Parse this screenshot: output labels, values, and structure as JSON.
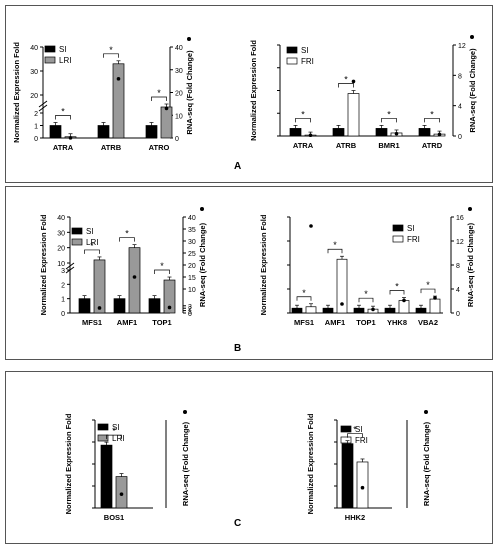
{
  "panels": [
    {
      "label": "A"
    },
    {
      "label": "B"
    },
    {
      "label": "C"
    }
  ],
  "colors": {
    "black": "#000000",
    "gray": "#999999",
    "white": "#ffffff"
  },
  "chart_data": [
    {
      "type": "bar",
      "panel": "A",
      "categories": [
        "ATRA",
        "ATRB",
        "ATRO"
      ],
      "ylabel": "Normalized Expression Fold",
      "y2label": "RNA-seq (Fold Change)",
      "axis_break": true,
      "y_ticks": [
        "0",
        "1",
        "2",
        "20",
        "30",
        "40"
      ],
      "y2_ticks": [
        "0",
        "10",
        "20",
        "30",
        "40"
      ],
      "series": [
        {
          "name": "SI",
          "color": "#000000",
          "values": [
            1.0,
            1.0,
            1.0
          ]
        },
        {
          "name": "LRI",
          "color": "#999999",
          "values": [
            0.1,
            33,
            15
          ]
        }
      ],
      "rnaseq": [
        0.08,
        26,
        13
      ],
      "significance": [
        "*",
        "*",
        "*"
      ]
    },
    {
      "type": "bar",
      "panel": "A",
      "categories": [
        "ATRA",
        "ATRB",
        "BMR1",
        "ATRD"
      ],
      "ylabel": "Normalized Expression Fold",
      "y2label": "RNA-seq (Fold Change)",
      "ylim": [
        0,
        12
      ],
      "y2_ticks": [
        "0",
        "4",
        "8",
        "12"
      ],
      "series": [
        {
          "name": "SI",
          "color": "#000000",
          "values": [
            1.0,
            1.0,
            1.0,
            1.0
          ]
        },
        {
          "name": "FRI",
          "color": "#ffffff",
          "values": [
            0.12,
            5.6,
            0.4,
            0.25
          ]
        }
      ],
      "rnaseq": [
        0.1,
        7.2,
        0.3,
        0.2
      ],
      "significance": [
        "*",
        "*",
        "*",
        "*"
      ]
    },
    {
      "type": "bar",
      "panel": "B",
      "categories": [
        "MFS1",
        "AMF1",
        "TOP1"
      ],
      "ylabel": "Normalized Expression Fold",
      "y2label": "RNA-seq (Fold Change)",
      "axis_break": true,
      "y_ticks": [
        "0",
        "1",
        "2",
        "3",
        "10",
        "20",
        "30",
        "40"
      ],
      "y2_ticks": [
        "0",
        "1",
        "2",
        "3",
        "10",
        "15",
        "20",
        "25",
        "30",
        "35",
        "40"
      ],
      "series": [
        {
          "name": "SI",
          "color": "#000000",
          "values": [
            1.0,
            1.0,
            1.0
          ]
        },
        {
          "name": "LRI",
          "color": "#999999",
          "values": [
            12,
            20,
            2.3
          ]
        }
      ],
      "rnaseq": [
        2.1,
        15,
        2.3
      ],
      "significance": [
        "*",
        "*",
        "*"
      ]
    },
    {
      "type": "bar",
      "panel": "B",
      "categories": [
        "MFS1",
        "AMF1",
        "TOP1",
        "YHK8",
        "VBA2"
      ],
      "ylabel": "Normalized Expression Fold",
      "y2label": "RNA-seq (Fold Change)",
      "ylim": [
        0,
        20
      ],
      "y2_ticks": [
        "0",
        "4",
        "8",
        "12",
        "16"
      ],
      "series": [
        {
          "name": "SI",
          "color": "#000000",
          "values": [
            1.0,
            1.0,
            1.0,
            1.0,
            1.0
          ]
        },
        {
          "name": "FRI",
          "color": "#ffffff",
          "values": [
            1.3,
            11.2,
            0.8,
            2.6,
            2.9
          ]
        }
      ],
      "rnaseq": [
        14.5,
        1.5,
        0.6,
        2.1,
        2.5
      ],
      "significance": [
        "*",
        "*",
        "*",
        "*",
        "*"
      ]
    },
    {
      "type": "bar",
      "panel": "C",
      "categories": [
        "BOS1"
      ],
      "ylabel": "Normalized Expression Fold",
      "y2label": "RNA-seq (Fold Change)",
      "ylim": [
        0,
        1.4
      ],
      "series": [
        {
          "name": "SI",
          "color": "#000000",
          "values": [
            1.0
          ]
        },
        {
          "name": "LRI",
          "color": "#999999",
          "values": [
            0.5
          ]
        }
      ],
      "rnaseq": [
        0.22
      ],
      "significance": [
        "*"
      ]
    },
    {
      "type": "bar",
      "panel": "C",
      "categories": [
        "HHK2"
      ],
      "ylabel": "Normalized Expression Fold",
      "y2label": "RNA-seq (Fold Change)",
      "ylim": [
        0,
        1.3
      ],
      "series": [
        {
          "name": "SI",
          "color": "#000000",
          "values": [
            0.95
          ]
        },
        {
          "name": "FRI",
          "color": "#ffffff",
          "values": [
            0.68
          ]
        }
      ],
      "rnaseq": [
        0.3
      ],
      "significance": [
        "*"
      ]
    }
  ]
}
